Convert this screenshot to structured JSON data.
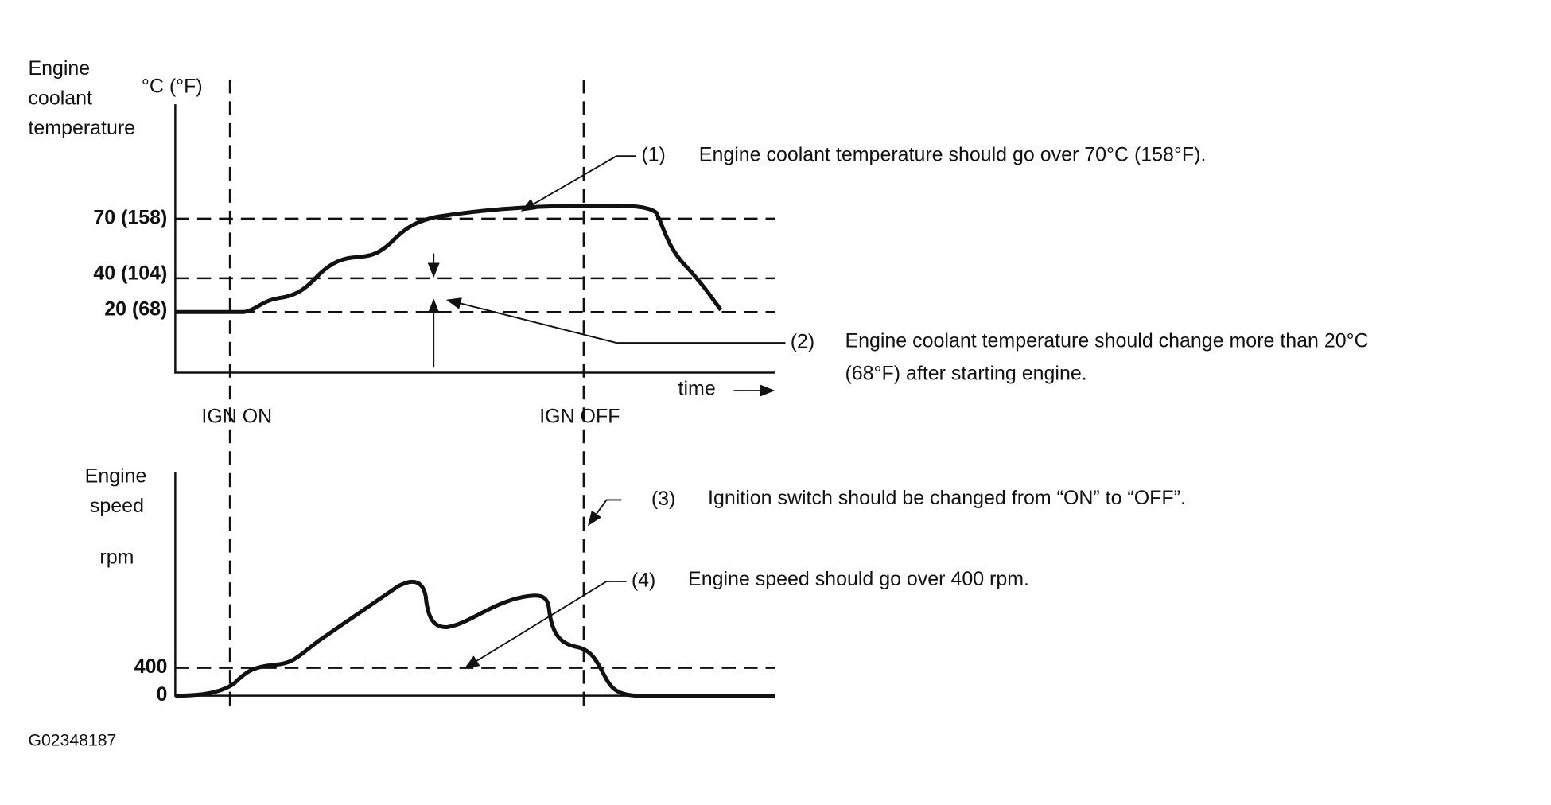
{
  "top_panel": {
    "axis_label": [
      "Engine",
      "coolant",
      "temperature"
    ],
    "unit": "°C (°F)",
    "ticks": [
      "70 (158)",
      "40 (104)",
      "20 (68)"
    ],
    "time_label": "time"
  },
  "markers": [
    "IGN ON",
    "IGN OFF"
  ],
  "bottom_panel": {
    "axis_label": [
      "Engine",
      "speed"
    ],
    "unit": "rpm",
    "ticks": [
      "400",
      "0"
    ]
  },
  "notes": [
    {
      "number": "(1)",
      "lines": [
        "Engine coolant temperature should go over 70°C (158°F)."
      ]
    },
    {
      "number": "(2)",
      "lines": [
        "Engine coolant temperature should change more than 20°C",
        "(68°F) after starting engine."
      ]
    },
    {
      "number": "(3)",
      "lines": [
        "Ignition switch should be changed from “ON” to “OFF”."
      ]
    },
    {
      "number": "(4)",
      "lines": [
        "Engine speed should go over 400 rpm."
      ]
    }
  ],
  "figure_id": "G02348187"
}
